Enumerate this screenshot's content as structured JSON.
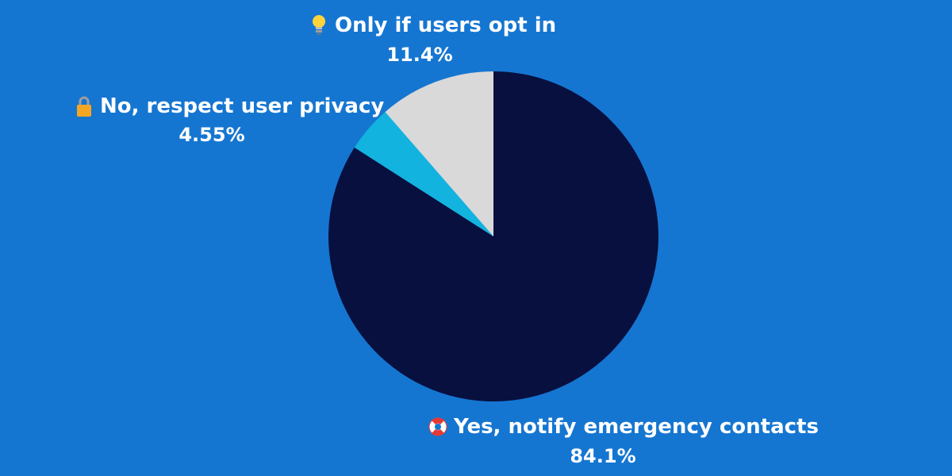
{
  "chart_data": {
    "type": "pie",
    "slices": [
      {
        "label": "Yes, notify emergency contacts",
        "value": 84.1,
        "value_label": "84.1%",
        "color": "#08103F",
        "icon": "lifebuoy-icon"
      },
      {
        "label": "No, respect user privacy",
        "value": 4.55,
        "value_label": "4.55%",
        "color": "#12B3DF",
        "icon": "lock-icon"
      },
      {
        "label": "Only if users opt in",
        "value": 11.4,
        "value_label": "11.4%",
        "color": "#D9D9D9",
        "icon": "lightbulb-icon"
      }
    ],
    "start": "12-o-clock",
    "direction": "clockwise",
    "legend": "none",
    "background": "#1576D1"
  }
}
